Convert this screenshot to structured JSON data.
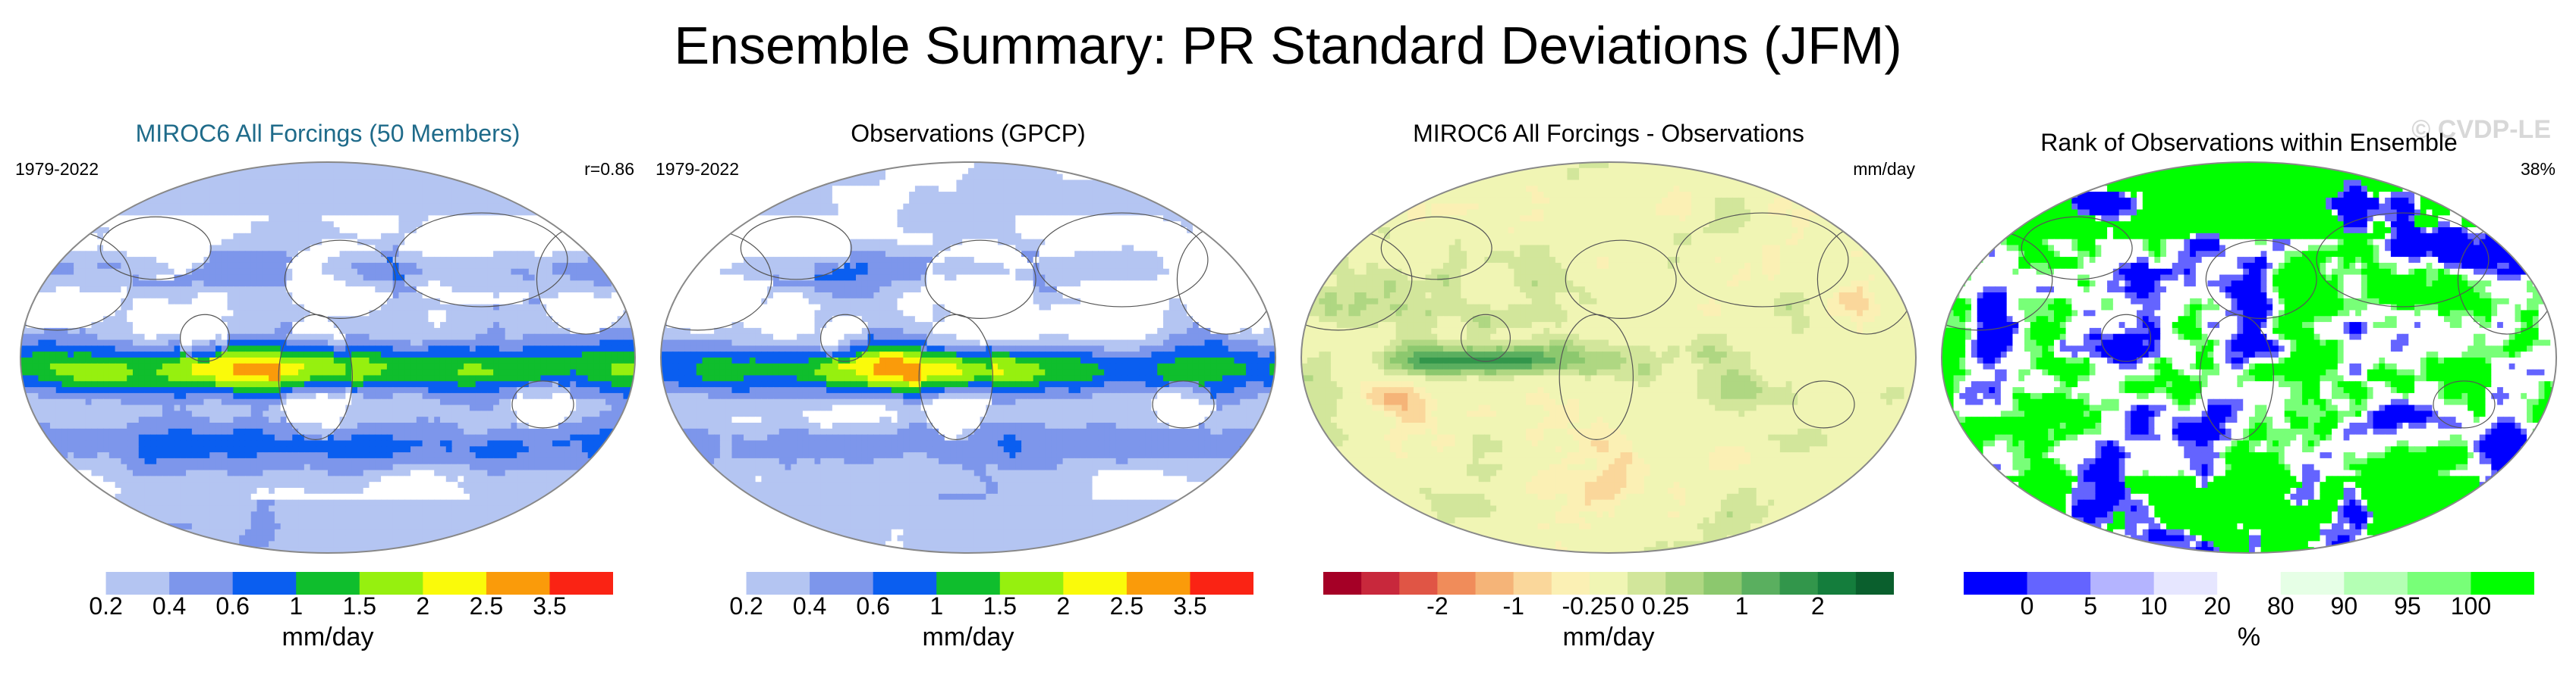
{
  "title": "Ensemble Summary: PR Standard Deviations (JFM)",
  "colors": {
    "title_accent": "#1f6b8a",
    "outline": "#888888",
    "text": "#000000",
    "precip_scale": [
      "#ffffff",
      "#b4c5f2",
      "#7d96eb",
      "#0a5ef0",
      "#0fbe2d",
      "#96f00f",
      "#fafa0a",
      "#fa9b0a",
      "#fa2314"
    ],
    "diff_scale": [
      "#a50026",
      "#c8283c",
      "#e05545",
      "#f08c5a",
      "#f5b478",
      "#fad79b",
      "#fbf0b4",
      "#f0f5b4",
      "#d2e69b",
      "#afd782",
      "#8cc86e",
      "#5aaf5f",
      "#32964b",
      "#147d3c",
      "#0a5f2d"
    ],
    "rank_scale": [
      "#0000ff",
      "#6464ff",
      "#b4b4ff",
      "#e6e6ff",
      "#ffffff",
      "#e6ffe6",
      "#b4ffb4",
      "#78ff78",
      "#00ff00"
    ]
  },
  "panels": [
    {
      "title": "MIROC6 All Forcings (50 Members)",
      "title_color": "#1f6b8a",
      "left_label": "1979-2022",
      "right_label": "r=0.86",
      "watermark": "",
      "field_type": "model_precip",
      "colorbar": {
        "type": "precip",
        "labels": [
          "0.2",
          "0.4",
          "0.6",
          "1",
          "1.5",
          "2",
          "2.5",
          "3.5"
        ],
        "unit": "mm/day"
      }
    },
    {
      "title": "Observations (GPCP)",
      "title_color": "#000000",
      "left_label": "1979-2022",
      "right_label": "",
      "watermark": "",
      "field_type": "obs_precip",
      "colorbar": {
        "type": "precip",
        "labels": [
          "0.2",
          "0.4",
          "0.6",
          "1",
          "1.5",
          "2",
          "2.5",
          "3.5"
        ],
        "unit": "mm/day"
      }
    },
    {
      "title": "MIROC6 All Forcings - Observations",
      "title_color": "#000000",
      "left_label": "",
      "right_label": "mm/day",
      "watermark": "",
      "field_type": "difference",
      "colorbar": {
        "type": "diff",
        "labels": [
          "-2",
          "-1",
          "-0.25",
          "0",
          "0.25",
          "1",
          "2"
        ],
        "unit": "mm/day"
      }
    },
    {
      "title": "Rank of Observations within Ensemble",
      "title_color": "#000000",
      "left_label": "",
      "right_label": "38%",
      "watermark": "© CVDP-LE",
      "field_type": "rank",
      "colorbar": {
        "type": "rank",
        "labels": [
          "0",
          "5",
          "10",
          "20",
          "80",
          "90",
          "95",
          "100"
        ],
        "unit": "%"
      }
    }
  ]
}
